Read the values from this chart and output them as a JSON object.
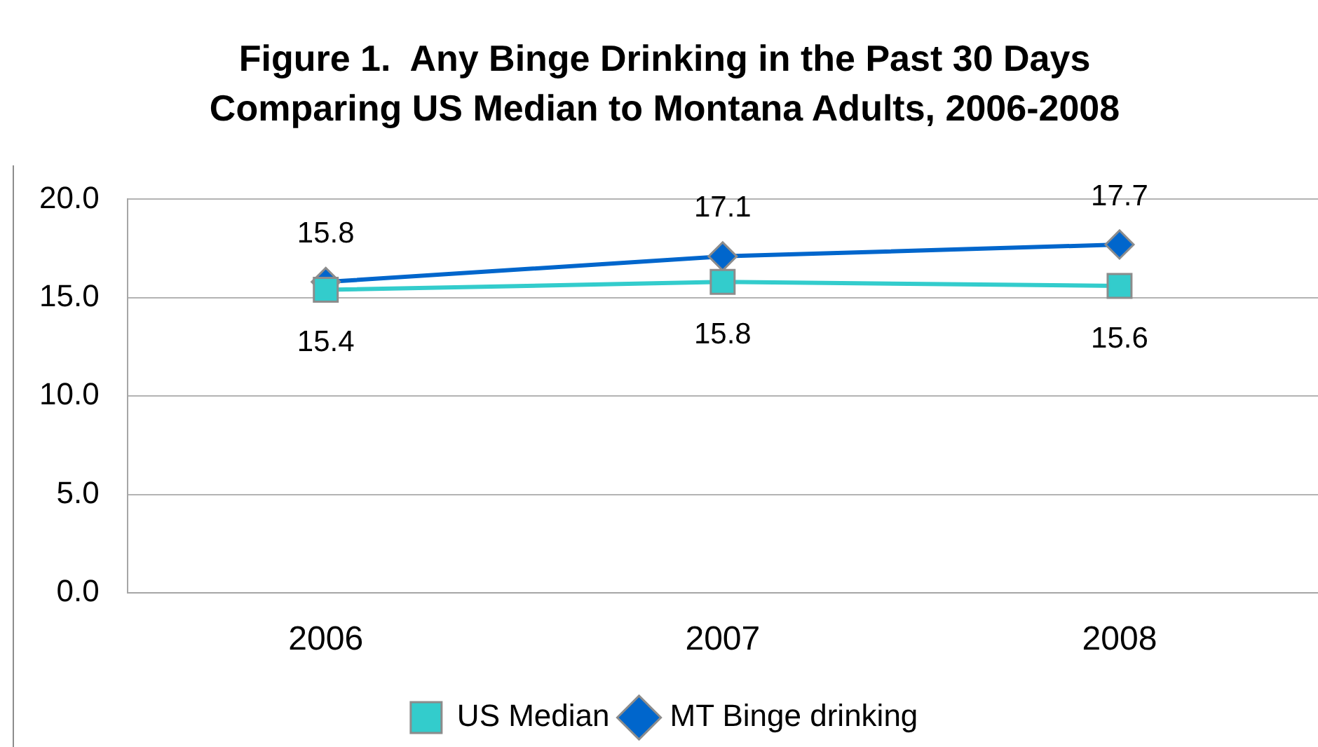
{
  "chart_data": {
    "type": "line",
    "title": "Figure 1.  Any Binge Drinking in the Past 30 Days\nComparing US Median to Montana Adults, 2006-2008",
    "categories": [
      "2006",
      "2007",
      "2008"
    ],
    "series": [
      {
        "name": "US Median",
        "color": "#33cccc",
        "values": [
          15.4,
          15.8,
          15.6
        ],
        "marker": "square"
      },
      {
        "name": "MT Binge drinking",
        "color": "#0066cc",
        "values": [
          15.8,
          17.1,
          17.7
        ],
        "marker": "diamond"
      }
    ],
    "ylim": [
      0,
      20
    ],
    "yticks": [
      {
        "value": 0,
        "label": "0.0"
      },
      {
        "value": 5,
        "label": "5.0"
      },
      {
        "value": 10,
        "label": "10.0"
      },
      {
        "value": 15,
        "label": "15.0"
      },
      {
        "value": 20,
        "label": "20.0"
      }
    ],
    "grid": "y",
    "legend": "bottom",
    "data_labels": true,
    "line_style": "solid"
  }
}
